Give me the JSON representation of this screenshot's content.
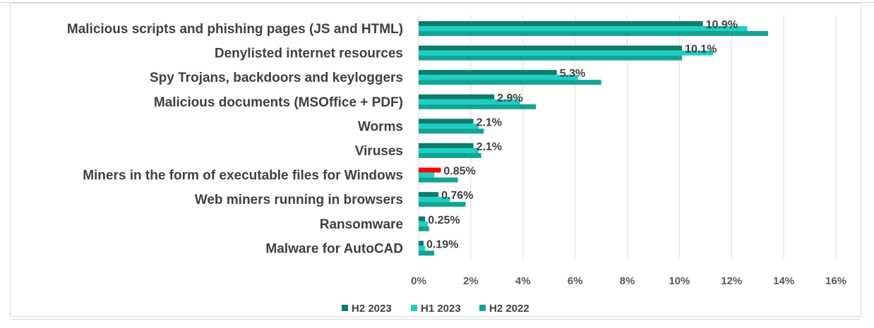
{
  "chart_data": {
    "type": "bar",
    "orientation": "horizontal",
    "title": "",
    "xlabel": "",
    "ylabel": "",
    "xlim": [
      0,
      16
    ],
    "x_ticks": [
      "0%",
      "2%",
      "4%",
      "6%",
      "8%",
      "10%",
      "12%",
      "14%",
      "16%"
    ],
    "grid": "vertical",
    "legend_position": "bottom",
    "categories": [
      "Malicious scripts and phishing pages (JS and HTML)",
      "Denylisted internet resources",
      "Spy Trojans, backdoors and keyloggers",
      "Malicious documents (MSOffice + PDF)",
      "Worms",
      "Viruses",
      "Miners in the form of executable files for Windows",
      "Web miners running in browsers",
      "Ransomware",
      "Malware for AutoCAD"
    ],
    "series": [
      {
        "name": "H2 2023",
        "color": "#0b7d6a",
        "values": [
          10.9,
          10.1,
          5.3,
          2.9,
          2.1,
          2.1,
          0.85,
          0.76,
          0.25,
          0.19
        ]
      },
      {
        "name": "H1 2023",
        "color": "#1dcfc4",
        "values": [
          12.6,
          11.3,
          6.1,
          3.9,
          2.3,
          2.3,
          0.6,
          1.2,
          0.35,
          0.25
        ]
      },
      {
        "name": "H2 2022",
        "color": "#12a493",
        "values": [
          13.4,
          10.1,
          7.0,
          4.5,
          2.5,
          2.4,
          1.5,
          1.8,
          0.4,
          0.6
        ]
      }
    ],
    "highlight": {
      "category_index": 6,
      "series_index": 0,
      "color": "#ff0000"
    },
    "data_labels": [
      "10.9%",
      "10.1%",
      "5.3%",
      "2.9%",
      "2.1%",
      "2.1%",
      "0.85%",
      "0.76%",
      "0.25%",
      "0.19%"
    ]
  }
}
